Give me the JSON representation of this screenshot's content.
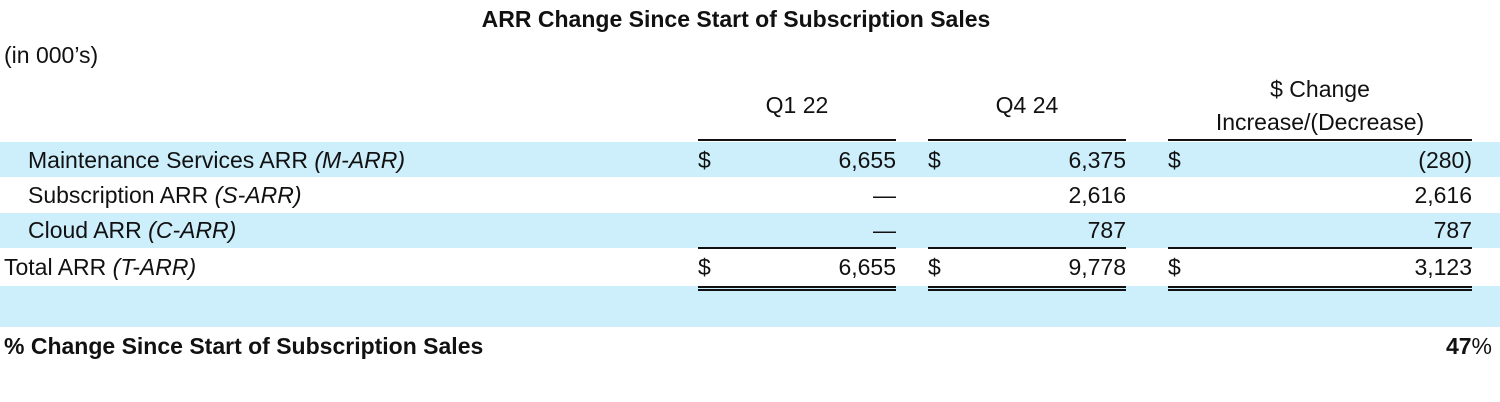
{
  "title": "ARR Change Since Start of Subscription Sales",
  "units": "(in 000’s)",
  "columns": {
    "col1": "Q1 22",
    "col2": "Q4 24",
    "col3_line1": "$ Change",
    "col3_line2": "Increase/(Decrease)"
  },
  "currency_symbol": "$",
  "rows": [
    {
      "label": "Maintenance Services ARR ",
      "label_italic": "(M-ARR)",
      "q1_22": "6,655",
      "q4_24": "6,375",
      "change": "(280)"
    },
    {
      "label": "Subscription ARR ",
      "label_italic": "(S-ARR)",
      "q1_22": "—",
      "q4_24": "2,616",
      "change": "2,616"
    },
    {
      "label": "Cloud ARR ",
      "label_italic": "(C-ARR)",
      "q1_22": "—",
      "q4_24": "787",
      "change": "787"
    }
  ],
  "total": {
    "label": "Total ARR ",
    "label_italic": "(T-ARR)",
    "q1_22": "6,655",
    "q4_24": "9,778",
    "change": "3,123"
  },
  "pct_change": {
    "label": "% Change Since Start of Subscription Sales",
    "value": "47",
    "suffix": "%"
  },
  "colors": {
    "band": "#cdeefb",
    "text": "#111111"
  }
}
